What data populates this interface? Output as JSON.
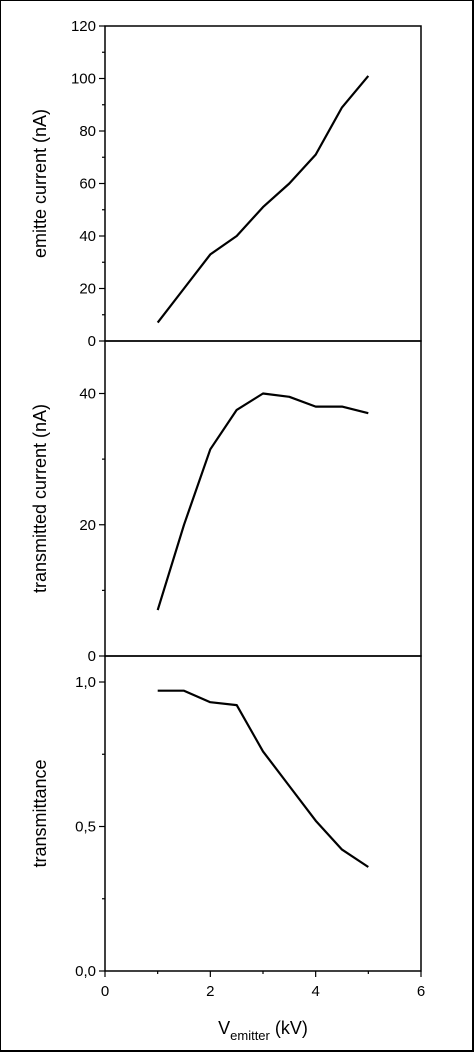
{
  "chart_data": [
    {
      "type": "line",
      "ylabel": "emitte current (nA)",
      "ylim": [
        0,
        120
      ],
      "yticks": [
        "0",
        "20",
        "40",
        "60",
        "80",
        "100",
        "120"
      ],
      "yticks_values": [
        0,
        20,
        40,
        60,
        80,
        100,
        120
      ],
      "series": [
        {
          "x": [
            1,
            1.5,
            2,
            2.5,
            3,
            3.5,
            4,
            4.5,
            5
          ],
          "y": [
            7,
            20,
            33,
            40,
            51,
            60,
            71,
            89,
            101
          ]
        }
      ]
    },
    {
      "type": "line",
      "ylabel": "transmitted current (nA)",
      "ylim": [
        0,
        48
      ],
      "yticks": [
        "0",
        "20",
        "40"
      ],
      "yticks_values": [
        0,
        20,
        40
      ],
      "series": [
        {
          "x": [
            1,
            1.5,
            2,
            2.5,
            3,
            3.5,
            4,
            4.5,
            5
          ],
          "y": [
            7,
            20,
            31.5,
            37.5,
            40,
            39.5,
            38,
            38,
            37
          ]
        }
      ]
    },
    {
      "type": "line",
      "ylabel": "transmittance",
      "ylim": [
        0,
        1.09
      ],
      "yticks": [
        "0,0",
        "0,5",
        "1,0"
      ],
      "yticks_values": [
        0,
        0.5,
        1.0
      ],
      "series": [
        {
          "x": [
            1,
            1.5,
            2,
            2.5,
            3,
            3.5,
            4,
            4.5,
            5
          ],
          "y": [
            0.97,
            0.97,
            0.93,
            0.92,
            0.76,
            0.64,
            0.52,
            0.42,
            0.36
          ]
        }
      ]
    }
  ],
  "x_axis": {
    "xlim": [
      0,
      6
    ],
    "xticks": [
      "0",
      "2",
      "4",
      "6"
    ],
    "xticks_values": [
      0,
      2,
      4,
      6
    ],
    "label_main": "V",
    "label_sub": "emitter",
    "label_unit": " (kV)"
  },
  "style": {
    "line_color": "#000000",
    "axis_color": "#000000"
  }
}
